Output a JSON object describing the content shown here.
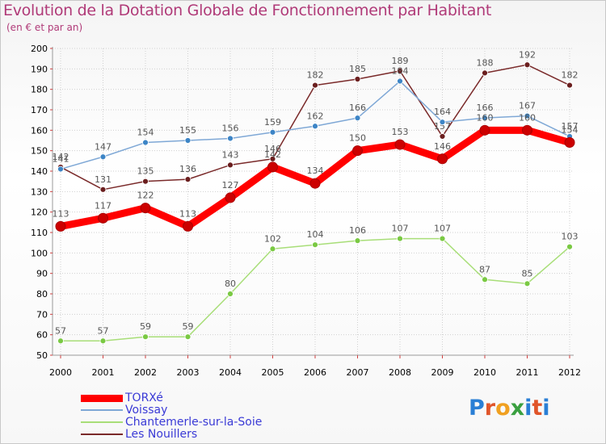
{
  "header": {
    "title": "Evolution de la Dotation Globale de Fonctionnement par Habitant",
    "subtitle": "(en € et par an)"
  },
  "colors": {
    "title": "#b03a78",
    "axis_label": "#000000",
    "grid": "#d0d0d0",
    "legend_text": "#3a3ad6",
    "data_label": "#555555"
  },
  "logo": {
    "text": "Proxiti",
    "letters": [
      "P",
      "r",
      "o",
      "x",
      "i",
      "t",
      "i"
    ],
    "letter_colors": [
      "#2a7fd5",
      "#e0552a",
      "#f0a020",
      "#3aa040",
      "#2a7fd5",
      "#e0552a",
      "#2a7fd5"
    ]
  },
  "chart_data": {
    "type": "line",
    "title": "Evolution de la Dotation Globale de Fonctionnement par Habitant",
    "subtitle": "(en € et par an)",
    "xlabel": "",
    "ylabel": "",
    "x": [
      "2000",
      "2001",
      "2002",
      "2003",
      "2004",
      "2005",
      "2006",
      "2007",
      "2008",
      "2009",
      "2010",
      "2011",
      "2012"
    ],
    "ylim": [
      50,
      200
    ],
    "yticks": [
      50,
      60,
      70,
      80,
      90,
      100,
      110,
      120,
      130,
      140,
      150,
      160,
      170,
      180,
      190,
      200
    ],
    "grid": true,
    "legend_position": "bottom-left",
    "series": [
      {
        "name": "TORXé",
        "color": "#ff0000",
        "marker": "#cc0000",
        "values": [
          113,
          117,
          122,
          113,
          127,
          142,
          134,
          150,
          153,
          146,
          160,
          160,
          154
        ]
      },
      {
        "name": "Voissay",
        "color": "#7fa8d6",
        "marker": "#3d85c6",
        "values": [
          141,
          147,
          154,
          155,
          156,
          159,
          162,
          166,
          184,
          164,
          166,
          167,
          157
        ]
      },
      {
        "name": "Chantemerle-sur-la-Soie",
        "color": "#a8de78",
        "marker": "#7ac943",
        "values": [
          57,
          57,
          59,
          59,
          80,
          102,
          104,
          106,
          107,
          107,
          87,
          85,
          103
        ]
      },
      {
        "name": "Les Nouillers",
        "color": "#7a2a2a",
        "marker": "#6b1f1f",
        "values": [
          142,
          131,
          135,
          136,
          143,
          146,
          182,
          185,
          189,
          157,
          188,
          192,
          182
        ]
      }
    ]
  }
}
